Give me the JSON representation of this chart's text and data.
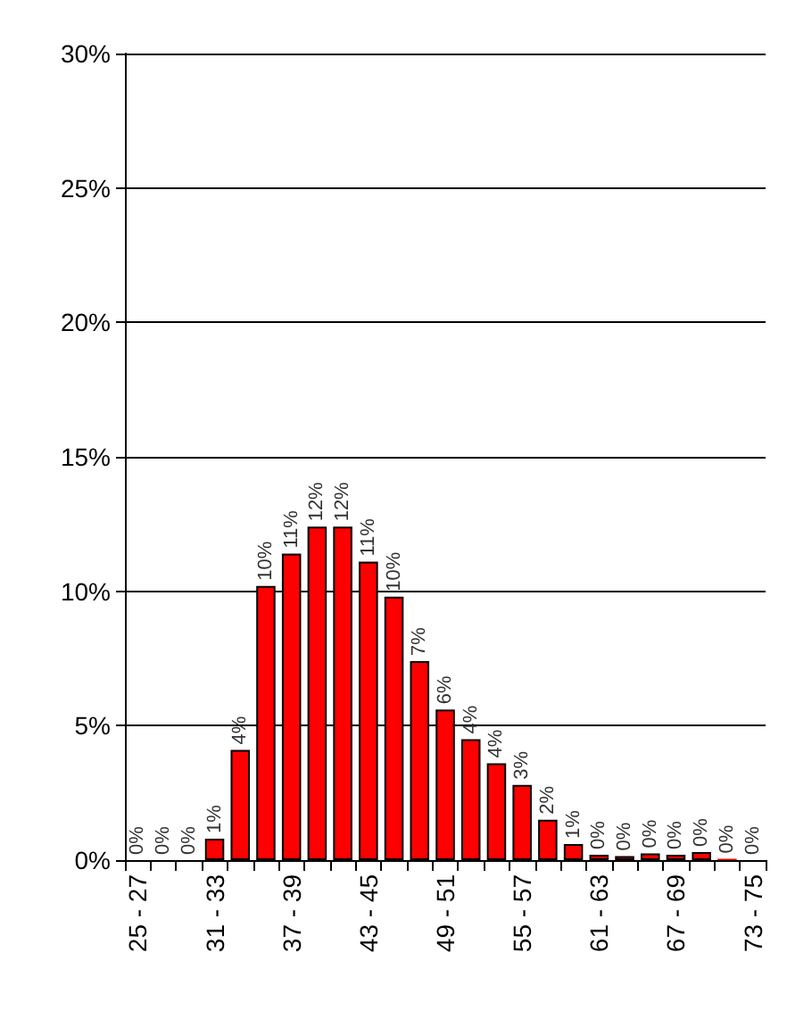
{
  "chart_data": {
    "type": "bar",
    "categories": [
      "25 - 27",
      null,
      null,
      "31 - 33",
      null,
      null,
      "37 - 39",
      null,
      null,
      "43 - 45",
      null,
      null,
      "49 - 51",
      null,
      null,
      "55 - 57",
      null,
      null,
      "61 - 63",
      null,
      null,
      "67 - 69",
      null,
      null,
      "73 - 75"
    ],
    "values": [
      0,
      0,
      0,
      0.8,
      4.1,
      10.2,
      11.4,
      12.4,
      12.4,
      11.1,
      9.8,
      7.4,
      5.6,
      4.5,
      3.6,
      2.8,
      1.5,
      0.6,
      0.2,
      0.15,
      0.25,
      0.2,
      0.3,
      0.05,
      0
    ],
    "value_labels": [
      "0%",
      "0%",
      "0%",
      "1%",
      "4%",
      "10%",
      "11%",
      "12%",
      "12%",
      "11%",
      "10%",
      "7%",
      "6%",
      "4%",
      "4%",
      "3%",
      "2%",
      "1%",
      "0%",
      "0%",
      "0%",
      "0%",
      "0%",
      "0%",
      "0%"
    ],
    "color": "#ff0000",
    "ylim": [
      0,
      30
    ],
    "yticks": [
      {
        "value": 0,
        "label": "0%"
      },
      {
        "value": 5,
        "label": "5%"
      },
      {
        "value": 10,
        "label": "10%"
      },
      {
        "value": 15,
        "label": "15%"
      },
      {
        "value": 20,
        "label": "20%"
      },
      {
        "value": 25,
        "label": "25%"
      },
      {
        "value": 30,
        "label": "30%"
      }
    ],
    "grid": "y"
  }
}
